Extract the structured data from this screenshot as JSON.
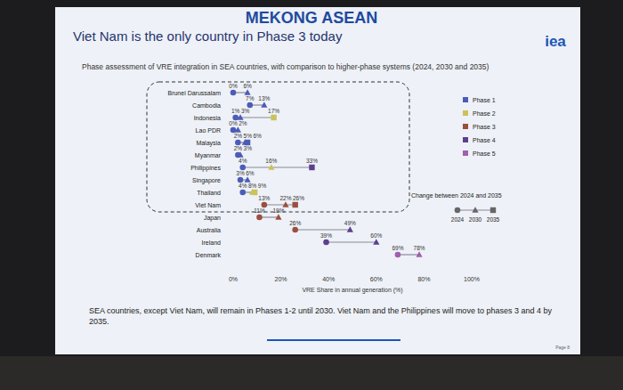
{
  "chart_data": {
    "type": "dumbbell",
    "title": "Viet Nam is the only country in Phase 3 today",
    "subtitle": "Phase assessment of VRE integration in SEA countries, with comparison to higher-phase systems (2024, 2030 and 2035)",
    "watermark": "MEKONG ASEAN",
    "logo": "iea",
    "x_label": "VRE Share in annual generation (%)",
    "footnote": "SEA countries, except Viet Nam, will remain in Phases 1-2 until 2030. Viet Nam and the Philippines will move to phases 3 and 4 by 2035.",
    "page": "Page 8",
    "legend_title": "Change between 2024 and 2035",
    "orientation": "horizontal",
    "data_labels": true,
    "grid": false,
    "legend": "right",
    "xlim": [
      0,
      100
    ],
    "xticks": [
      {
        "value": 0,
        "label": "0%"
      },
      {
        "value": 20,
        "label": "20%"
      },
      {
        "value": 40,
        "label": "40%"
      },
      {
        "value": 60,
        "label": "60%"
      },
      {
        "value": 80,
        "label": "80%"
      },
      {
        "value": 100,
        "label": "100%"
      }
    ],
    "categories": [
      "Brunei Darussalam",
      "Cambodia",
      "Indonesia",
      "Lao PDR",
      "Malaysia",
      "Myanmar",
      "Philippines",
      "Singapore",
      "Thailand",
      "Viet Nam",
      "Japan",
      "Australia",
      "Ireland",
      "Denmark"
    ],
    "boxed_categories": [
      "Brunei Darussalam",
      "Cambodia",
      "Indonesia",
      "Lao PDR",
      "Malaysia",
      "Myanmar",
      "Philippines",
      "Singapore",
      "Thailand",
      "Viet Nam"
    ],
    "phases": [
      {
        "name": "Phase 1",
        "color": "#4b5cb8"
      },
      {
        "name": "Phase 2",
        "color": "#c9c35a"
      },
      {
        "name": "Phase 3",
        "color": "#9b4f3f"
      },
      {
        "name": "Phase 4",
        "color": "#5d3f8f"
      },
      {
        "name": "Phase 5",
        "color": "#a05fb0"
      }
    ],
    "series": [
      {
        "name": "2024",
        "marker": "circle",
        "values": [
          0,
          7,
          1,
          0,
          2,
          2,
          4,
          3,
          4,
          13,
          11,
          26,
          39,
          69
        ],
        "value_labels": [
          "0%",
          "7%",
          "1%",
          "0%",
          "2%",
          "2%",
          "4%",
          "3%",
          "4%",
          "13%",
          "11%",
          "26%",
          "39%",
          "69%"
        ],
        "colors": [
          "#4b5cb8",
          "#4b5cb8",
          "#4b5cb8",
          "#4b5cb8",
          "#4b5cb8",
          "#4b5cb8",
          "#4b5cb8",
          "#4b5cb8",
          "#4b5cb8",
          "#9b4f3f",
          "#9b4f3f",
          "#9b4f3f",
          "#5d3f8f",
          "#a05fb0"
        ]
      },
      {
        "name": "2030",
        "marker": "triangle",
        "values": [
          6,
          13,
          3,
          2,
          5,
          3,
          16,
          6,
          8,
          22,
          19,
          49,
          60,
          78
        ],
        "value_labels": [
          "6%",
          "13%",
          "3%",
          "2%",
          "5%",
          "3%",
          "16%",
          "6%",
          "8%",
          "22%",
          "19%",
          "49%",
          "60%",
          "78%"
        ],
        "colors": [
          "#4b5cb8",
          "#4b5cb8",
          "#4b5cb8",
          "#4b5cb8",
          "#4b5cb8",
          "#4b5cb8",
          "#c9c35a",
          "#4b5cb8",
          "#c9c35a",
          "#9b4f3f",
          "#9b4f3f",
          "#5d3f8f",
          "#5d3f8f",
          "#a05fb0"
        ]
      },
      {
        "name": "2035",
        "marker": "square",
        "values": [
          null,
          null,
          17,
          null,
          6,
          null,
          33,
          null,
          9,
          26,
          null,
          null,
          null,
          null
        ],
        "value_labels": [
          null,
          null,
          "17%",
          null,
          "6%",
          null,
          "33%",
          null,
          "9%",
          "26%",
          null,
          null,
          null,
          null
        ],
        "colors": [
          null,
          null,
          "#c9c35a",
          null,
          "#4b5cb8",
          null,
          "#5d3f8f",
          null,
          "#c9c35a",
          "#9b4f3f",
          null,
          null,
          null,
          null
        ]
      }
    ]
  }
}
